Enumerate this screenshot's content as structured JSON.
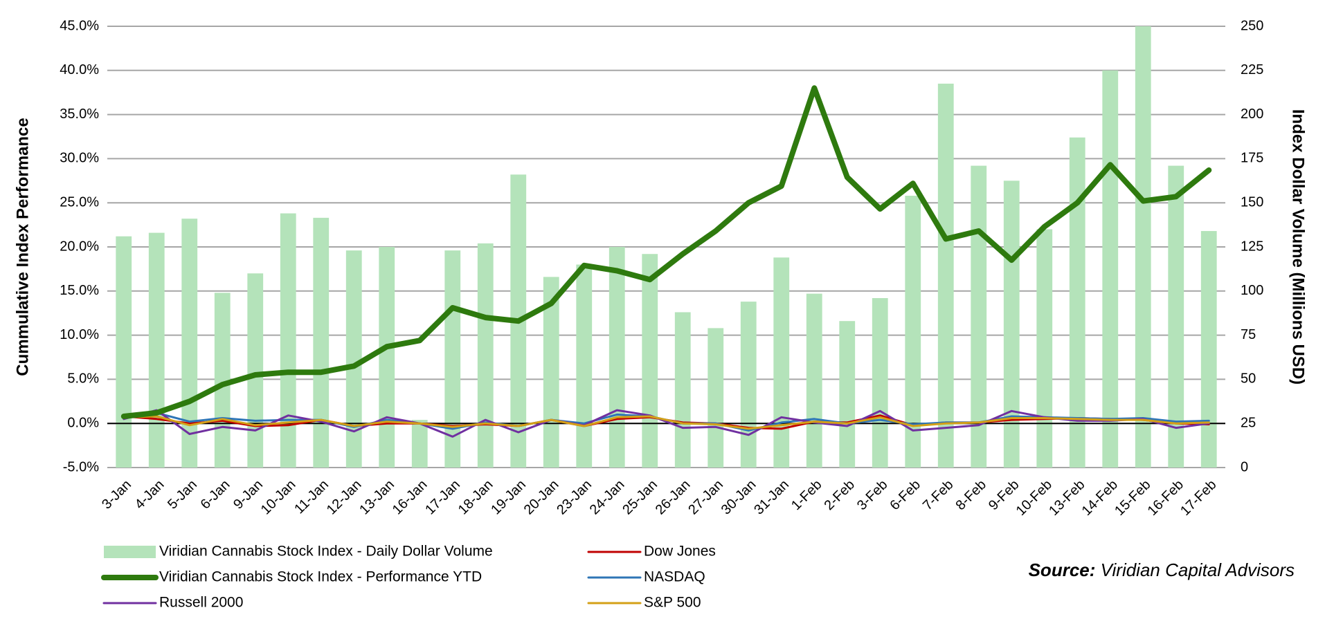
{
  "chart_data": {
    "type": "combo",
    "categories": [
      "3-Jan",
      "4-Jan",
      "5-Jan",
      "6-Jan",
      "9-Jan",
      "10-Jan",
      "11-Jan",
      "12-Jan",
      "13-Jan",
      "16-Jan",
      "17-Jan",
      "18-Jan",
      "19-Jan",
      "20-Jan",
      "23-Jan",
      "24-Jan",
      "25-Jan",
      "26-Jan",
      "27-Jan",
      "30-Jan",
      "31-Jan",
      "1-Feb",
      "2-Feb",
      "3-Feb",
      "6-Feb",
      "7-Feb",
      "8-Feb",
      "9-Feb",
      "10-Feb",
      "13-Feb",
      "14-Feb",
      "15-Feb",
      "16-Feb",
      "17-Feb"
    ],
    "ylabel": "Cummulative Index Performance",
    "y2label": "Index Dollar Volume (Millions USD)",
    "ylim": [
      -5,
      45
    ],
    "yticks": [
      {
        "value": -5,
        "label": "-5.0%"
      },
      {
        "value": 0,
        "label": "0.0%"
      },
      {
        "value": 5,
        "label": "5.0%"
      },
      {
        "value": 10,
        "label": "10.0%"
      },
      {
        "value": 15,
        "label": "15.0%"
      },
      {
        "value": 20,
        "label": "20.0%"
      },
      {
        "value": 25,
        "label": "25.0%"
      },
      {
        "value": 30,
        "label": "30.0%"
      },
      {
        "value": 35,
        "label": "35.0%"
      },
      {
        "value": 40,
        "label": "40.0%"
      },
      {
        "value": 45,
        "label": "45.0%"
      }
    ],
    "y2lim": [
      0,
      250
    ],
    "y2ticks": [
      0,
      25,
      50,
      75,
      100,
      125,
      150,
      175,
      200,
      225,
      250
    ],
    "grid": true,
    "legend": "bottom",
    "series": [
      {
        "name": "Viridian Cannabis Stock Index - Daily Dollar Volume",
        "type": "bar",
        "axis": "y2",
        "color": "#b4e3ba",
        "values": [
          131,
          133,
          141,
          99,
          110,
          144,
          141.5,
          123,
          125,
          27,
          123,
          127,
          166,
          108,
          115,
          125,
          121,
          88,
          79,
          94,
          119,
          98.5,
          83,
          96,
          154,
          217.5,
          171,
          162.5,
          135,
          187,
          225,
          250,
          171,
          134
        ]
      },
      {
        "name": "Dow Jones",
        "type": "line",
        "axis": "y",
        "color": "#c00000",
        "width": 3,
        "values": [
          0.8,
          0.5,
          0,
          0.3,
          -0.3,
          -0.2,
          0.4,
          -0.3,
          0,
          0,
          -0.3,
          -0.1,
          -0.3,
          0.4,
          -0.3,
          0.5,
          0.7,
          0.1,
          0,
          -0.5,
          -0.6,
          0.2,
          0.1,
          0.9,
          -0.2,
          0.1,
          0.1,
          0.4,
          0.5,
          0.6,
          0.5,
          0.4,
          0,
          -0.1
        ]
      },
      {
        "name": "NASDAQ",
        "type": "line",
        "axis": "y",
        "color": "#2e75b6",
        "width": 3,
        "values": [
          0.9,
          1.2,
          0.2,
          0.6,
          0.3,
          0.4,
          0.4,
          -0.4,
          0.4,
          0,
          -0.6,
          0.1,
          -0.3,
          0.4,
          0,
          1.0,
          0.8,
          0,
          0,
          -0.8,
          0.1,
          0.5,
          0,
          0.4,
          -0.1,
          0.1,
          0.1,
          0.8,
          0.7,
          0.6,
          0.5,
          0.6,
          0.2,
          0.3
        ]
      },
      {
        "name": "Russell 2000",
        "type": "line",
        "axis": "y",
        "color": "#7030a0",
        "width": 3,
        "values": [
          0.5,
          1.5,
          -1.2,
          -0.4,
          -0.8,
          0.9,
          0.2,
          -0.9,
          0.7,
          0,
          -1.5,
          0.4,
          -1.0,
          0.4,
          -0.2,
          1.5,
          0.9,
          -0.5,
          -0.4,
          -1.3,
          0.7,
          0.1,
          -0.3,
          1.4,
          -0.8,
          -0.5,
          -0.2,
          1.4,
          0.7,
          0.3,
          0.3,
          0.5,
          -0.5,
          0
        ]
      },
      {
        "name": "S&P 500",
        "type": "line",
        "axis": "y",
        "color": "#d4a017",
        "width": 3,
        "values": [
          0.7,
          0.8,
          -0.2,
          0.5,
          -0.2,
          0.1,
          0.4,
          -0.3,
          0.2,
          0,
          -0.4,
          0,
          -0.3,
          0.4,
          -0.3,
          0.7,
          0.8,
          0,
          -0.1,
          -0.6,
          -0.2,
          0.2,
          0,
          0.7,
          -0.3,
          0,
          0.1,
          0.6,
          0.6,
          0.5,
          0.4,
          0.4,
          0,
          0.1
        ]
      },
      {
        "name": "Viridian Cannabis Stock Index - Performance YTD",
        "type": "line",
        "axis": "y",
        "color": "#2e7a0e",
        "width": 8,
        "values": [
          0.8,
          1.2,
          2.5,
          4.4,
          5.5,
          5.8,
          5.8,
          6.5,
          8.7,
          9.4,
          13.1,
          12.0,
          11.6,
          13.6,
          17.9,
          17.3,
          16.3,
          19.2,
          21.8,
          25.0,
          26.9,
          38.0,
          27.9,
          24.3,
          27.2,
          20.9,
          21.8,
          18.5,
          22.3,
          25.0,
          29.3,
          25.2,
          25.7,
          28.7
        ]
      }
    ],
    "source_label": "Source:",
    "source": "Viridian Capital Advisors"
  }
}
